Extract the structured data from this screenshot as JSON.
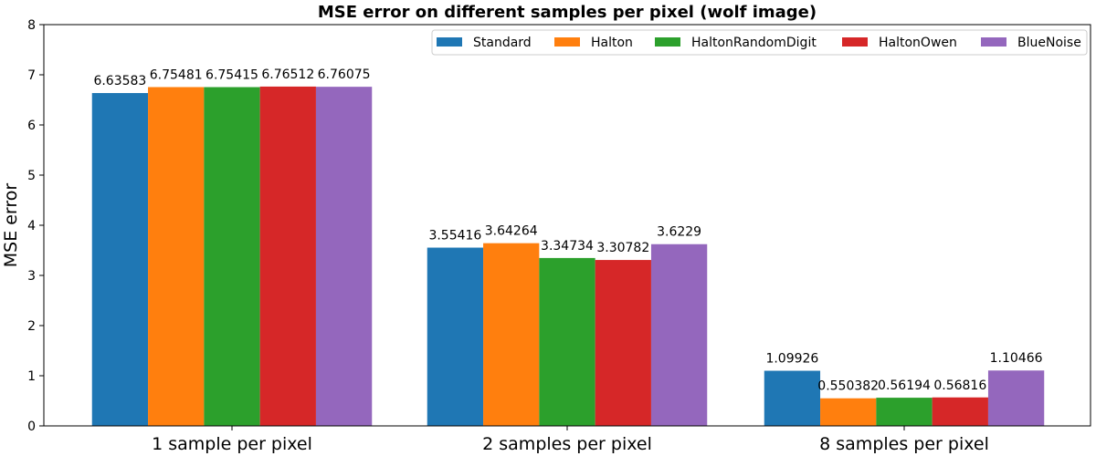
{
  "chart_data": {
    "type": "bar",
    "title": "MSE error on different samples per pixel (wolf image)",
    "xlabel": "",
    "ylabel": "MSE error",
    "ylim": [
      0,
      8
    ],
    "yticks": [
      0,
      1,
      2,
      3,
      4,
      5,
      6,
      7,
      8
    ],
    "categories": [
      "1 sample per pixel",
      "2 samples per pixel",
      "8 samples per pixel"
    ],
    "legend_position": "top-right",
    "grid": false,
    "series": [
      {
        "name": "Standard",
        "color": "#1f77b4",
        "values": [
          6.63583,
          3.55416,
          1.09926
        ],
        "labels": [
          "6.63583",
          "3.55416",
          "1.09926"
        ]
      },
      {
        "name": "Halton",
        "color": "#ff7f0e",
        "values": [
          6.75481,
          3.64264,
          0.550382
        ],
        "labels": [
          "6.75481",
          "3.64264",
          "0.550382"
        ]
      },
      {
        "name": "HaltonRandomDigit",
        "color": "#2ca02c",
        "values": [
          6.75415,
          3.34734,
          0.56194
        ],
        "labels": [
          "6.75415",
          "3.34734",
          "0.56194"
        ]
      },
      {
        "name": "HaltonOwen",
        "color": "#d62728",
        "values": [
          6.76512,
          3.30782,
          0.56816
        ],
        "labels": [
          "6.76512",
          "3.30782",
          "0.56816"
        ]
      },
      {
        "name": "BlueNoise",
        "color": "#9467bd",
        "values": [
          6.76075,
          3.6229,
          1.10466
        ],
        "labels": [
          "6.76075",
          "3.6229",
          "1.10466"
        ]
      }
    ]
  }
}
